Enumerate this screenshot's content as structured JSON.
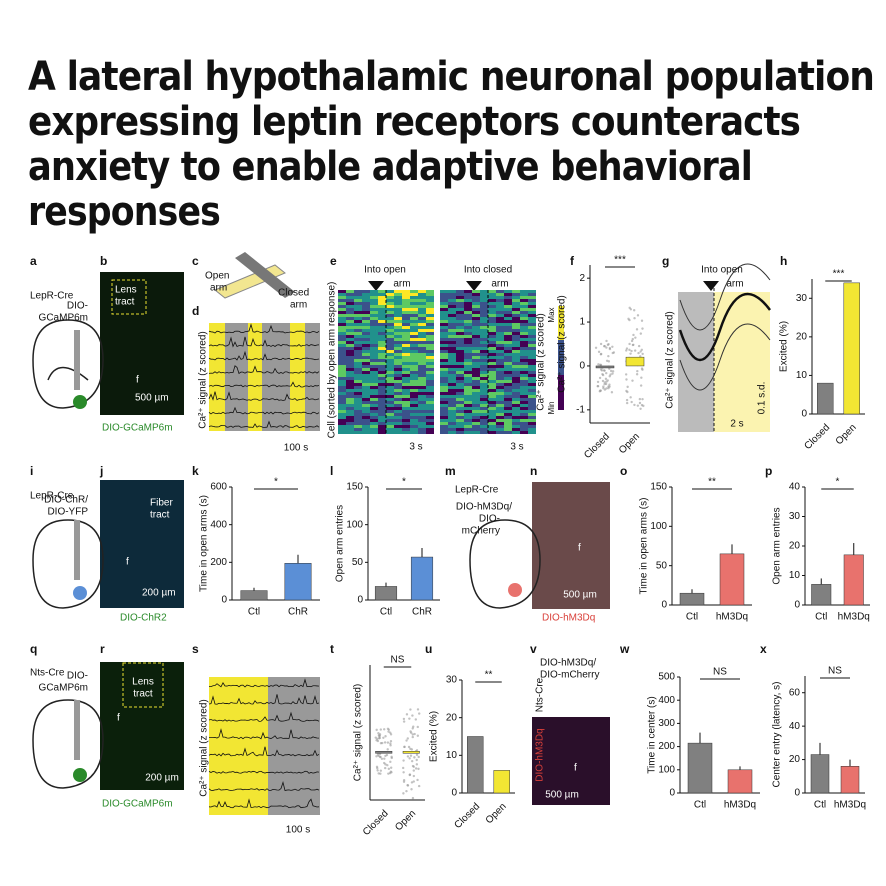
{
  "title_lines": [
    "A lateral hypothalamic neuronal population",
    "expressing leptin receptors counteracts",
    "anxiety to enable adaptive behavioral",
    "responses"
  ],
  "letters": [
    "a",
    "b",
    "c",
    "d",
    "e",
    "f",
    "g",
    "h",
    "i",
    "j",
    "k",
    "l",
    "m",
    "n",
    "o",
    "p",
    "q",
    "r",
    "s",
    "t",
    "u",
    "v",
    "w",
    "x"
  ],
  "labels": [
    "LepR-Cre",
    "DIO-",
    "GCaMP6m",
    "Lens",
    "tract",
    "500 µm",
    "DIO-GCaMP6m",
    "Open",
    "arm",
    "Closed",
    "arm",
    "Ca²⁺ signal (z scored)",
    "100 s",
    "Into open",
    "arm",
    "Into closed",
    "arm",
    "Cell (sorted by open arm response)",
    "3 s",
    "3 s",
    "Max",
    "Min",
    "Ca²⁺ signal (z scored)",
    "Into open",
    "arm",
    "Ca²⁺ signal (z scored)",
    "0.1 s.d.",
    "2 s",
    "LepR-Cre",
    "DIO-ChR/",
    "DIO-YFP",
    "Fiber",
    "tract",
    "200 µm",
    "DIO-ChR2",
    "LepR-Cre",
    "DIO-hM3Dq/",
    "DIO-",
    "mCherry",
    "500 µm",
    "DIO-hM3Dq",
    "Nts-Cre",
    "DIO-",
    "GCaMP6m",
    "Lens",
    "tract",
    "200 µm",
    "DIO-GCaMP6m",
    "Ca²⁺ signal (z scored)",
    "100 s",
    "DIO-hM3Dq/",
    "DIO-mCherry",
    "Nts-Cre",
    "DIO-hM3Dq",
    "500 µm",
    "f"
  ],
  "chart_data": [
    {
      "type": "strip",
      "y_label": "Ca²⁺ signal (z scored)",
      "categories": [
        "Closed",
        "Open"
      ],
      "values": [
        0,
        0.2
      ],
      "colors": [
        "#808080",
        "#f2e633"
      ],
      "ylim": [
        -1.3,
        2.3
      ],
      "yticks": [
        -1,
        0,
        1,
        2
      ],
      "significance": "***"
    },
    {
      "type": "bar",
      "y_label": "Excited (%)",
      "categories": [
        "Closed",
        "Open"
      ],
      "values": [
        8,
        34
      ],
      "colors": [
        "#808080",
        "#f2e633"
      ],
      "ylim": [
        0,
        35
      ],
      "yticks": [
        0,
        10,
        20,
        30
      ],
      "significance": "***"
    },
    {
      "type": "bar",
      "y_label": "Time in open arms (s)",
      "categories": [
        "Ctl",
        "ChR"
      ],
      "values": [
        50,
        195
      ],
      "errors": [
        15,
        45
      ],
      "colors": [
        "#808080",
        "#5b8fd6"
      ],
      "ylim": [
        0,
        600
      ],
      "yticks": [
        0,
        200,
        400,
        600
      ],
      "significance": "*"
    },
    {
      "type": "bar",
      "y_label": "Open arm entries",
      "categories": [
        "Ctl",
        "ChR"
      ],
      "values": [
        18,
        57
      ],
      "errors": [
        5,
        12
      ],
      "colors": [
        "#808080",
        "#5b8fd6"
      ],
      "ylim": [
        0,
        150
      ],
      "yticks": [
        0,
        50,
        100,
        150
      ],
      "significance": "*"
    },
    {
      "type": "bar",
      "y_label": "Time in open arms (s)",
      "categories": [
        "Ctl",
        "hM3Dq"
      ],
      "values": [
        15,
        65
      ],
      "errors": [
        5,
        12
      ],
      "colors": [
        "#808080",
        "#e8726d"
      ],
      "ylim": [
        0,
        150
      ],
      "yticks": [
        0,
        50,
        100,
        150
      ],
      "significance": "**"
    },
    {
      "type": "bar",
      "y_label": "Open arm entries",
      "categories": [
        "Ctl",
        "hM3Dq"
      ],
      "values": [
        7,
        17
      ],
      "errors": [
        2,
        4
      ],
      "colors": [
        "#808080",
        "#e8726d"
      ],
      "ylim": [
        0,
        40
      ],
      "yticks": [
        0,
        10,
        20,
        30,
        40
      ],
      "significance": "*"
    },
    {
      "type": "strip",
      "y_label": "Ca²⁺ signal (z scored)",
      "categories": [
        "Closed",
        "Open"
      ],
      "values": [
        0,
        -0.05
      ],
      "colors": [
        "#808080",
        "#f2e633"
      ],
      "ylim": [
        -1.3,
        2.3
      ],
      "significance": "NS"
    },
    {
      "type": "bar",
      "y_label": "Excited (%)",
      "categories": [
        "Closed",
        "Open"
      ],
      "values": [
        15,
        6
      ],
      "colors": [
        "#808080",
        "#f2e633"
      ],
      "ylim": [
        0,
        30
      ],
      "yticks": [
        0,
        10,
        20,
        30
      ],
      "significance": "**"
    },
    {
      "type": "bar",
      "y_label": "Time in center (s)",
      "categories": [
        "Ctl",
        "hM3Dq"
      ],
      "values": [
        215,
        100
      ],
      "errors": [
        45,
        15
      ],
      "colors": [
        "#808080",
        "#e8726d"
      ],
      "ylim": [
        0,
        500
      ],
      "yticks": [
        0,
        100,
        200,
        300,
        400,
        500
      ],
      "significance": "NS"
    },
    {
      "type": "bar",
      "y_label": "Center entry (latency, s)",
      "categories": [
        "Ctl",
        "hM3Dq"
      ],
      "values": [
        23,
        16
      ],
      "errors": [
        7,
        4
      ],
      "colors": [
        "#808080",
        "#e8726d"
      ],
      "ylim": [
        0,
        70
      ],
      "yticks": [
        0,
        20,
        40,
        60
      ],
      "significance": "NS"
    }
  ]
}
